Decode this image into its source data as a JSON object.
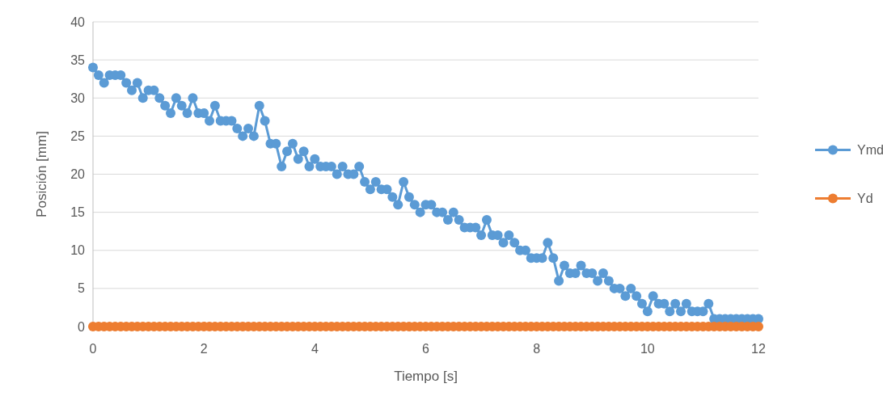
{
  "chart_data": {
    "type": "line",
    "xlabel": "Tiempo [s]",
    "ylabel": "Posición [mm]",
    "x": [
      0,
      0.1,
      0.2,
      0.3,
      0.4,
      0.5,
      0.6,
      0.7,
      0.8,
      0.9,
      1,
      1.1,
      1.2,
      1.3,
      1.4,
      1.5,
      1.6,
      1.7,
      1.8,
      1.9,
      2,
      2.1,
      2.2,
      2.3,
      2.4,
      2.5,
      2.6,
      2.7,
      2.8,
      2.9,
      3,
      3.1,
      3.2,
      3.3,
      3.4,
      3.5,
      3.6,
      3.7,
      3.8,
      3.9,
      4,
      4.1,
      4.2,
      4.3,
      4.4,
      4.5,
      4.6,
      4.7,
      4.8,
      4.9,
      5,
      5.1,
      5.2,
      5.3,
      5.4,
      5.5,
      5.6,
      5.7,
      5.8,
      5.9,
      6,
      6.1,
      6.2,
      6.3,
      6.4,
      6.5,
      6.6,
      6.7,
      6.8,
      6.9,
      7,
      7.1,
      7.2,
      7.3,
      7.4,
      7.5,
      7.6,
      7.7,
      7.8,
      7.9,
      8,
      8.1,
      8.2,
      8.3,
      8.4,
      8.5,
      8.6,
      8.7,
      8.8,
      8.9,
      9,
      9.1,
      9.2,
      9.3,
      9.4,
      9.5,
      9.6,
      9.7,
      9.8,
      9.9,
      10,
      10.1,
      10.2,
      10.3,
      10.4,
      10.5,
      10.6,
      10.7,
      10.8,
      10.9,
      11,
      11.1,
      11.2,
      11.3,
      11.4,
      11.5,
      11.6,
      11.7,
      11.8,
      11.9,
      12
    ],
    "series": [
      {
        "name": "Ymd",
        "color": "#5b9bd5",
        "values": [
          34,
          33,
          32,
          33,
          33,
          33,
          32,
          31,
          32,
          30,
          31,
          31,
          30,
          29,
          28,
          30,
          29,
          28,
          30,
          28,
          28,
          27,
          29,
          27,
          27,
          27,
          26,
          25,
          26,
          25,
          29,
          27,
          24,
          24,
          21,
          23,
          24,
          22,
          23,
          21,
          22,
          21,
          21,
          21,
          20,
          21,
          20,
          20,
          21,
          19,
          18,
          19,
          18,
          18,
          17,
          16,
          19,
          17,
          16,
          15,
          16,
          16,
          15,
          15,
          14,
          15,
          14,
          13,
          13,
          13,
          12,
          14,
          12,
          12,
          11,
          12,
          11,
          10,
          10,
          9,
          9,
          9,
          11,
          9,
          6,
          8,
          7,
          7,
          8,
          7,
          7,
          6,
          7,
          6,
          5,
          5,
          4,
          5,
          4,
          3,
          2,
          4,
          3,
          3,
          2,
          3,
          2,
          3,
          2,
          2,
          2,
          3,
          1,
          1,
          1,
          1,
          1,
          1,
          1,
          1,
          1
        ]
      },
      {
        "name": "Yd",
        "color": "#ed7d31",
        "values": [
          0,
          0,
          0,
          0,
          0,
          0,
          0,
          0,
          0,
          0,
          0,
          0,
          0,
          0,
          0,
          0,
          0,
          0,
          0,
          0,
          0,
          0,
          0,
          0,
          0,
          0,
          0,
          0,
          0,
          0,
          0,
          0,
          0,
          0,
          0,
          0,
          0,
          0,
          0,
          0,
          0,
          0,
          0,
          0,
          0,
          0,
          0,
          0,
          0,
          0,
          0,
          0,
          0,
          0,
          0,
          0,
          0,
          0,
          0,
          0,
          0,
          0,
          0,
          0,
          0,
          0,
          0,
          0,
          0,
          0,
          0,
          0,
          0,
          0,
          0,
          0,
          0,
          0,
          0,
          0,
          0,
          0,
          0,
          0,
          0,
          0,
          0,
          0,
          0,
          0,
          0,
          0,
          0,
          0,
          0,
          0,
          0,
          0,
          0,
          0,
          0,
          0,
          0,
          0,
          0,
          0,
          0,
          0,
          0,
          0,
          0,
          0,
          0,
          0,
          0,
          0,
          0,
          0,
          0,
          0,
          0
        ]
      }
    ],
    "xlim": [
      0,
      12
    ],
    "xticks": [
      0,
      2,
      4,
      6,
      8,
      10,
      12
    ],
    "ylim": [
      0,
      40
    ],
    "yticks": [
      0,
      5,
      10,
      15,
      20,
      25,
      30,
      35,
      40
    ],
    "grid": "y",
    "legend": "right",
    "marker": "circle",
    "line_style": "solid"
  }
}
